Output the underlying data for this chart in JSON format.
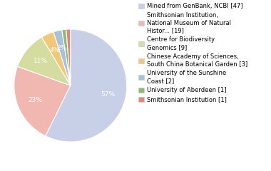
{
  "labels": [
    "Mined from GenBank, NCBI [47]",
    "Smithsonian Institution,\nNational Museum of Natural\nHistor... [19]",
    "Centre for Biodiversity\nGenomics [9]",
    "Chinese Academy of Sciences,\nSouth China Botanical Garden [3]",
    "University of the Sunshine\nCoast [2]",
    "University of Aberdeen [1]",
    "Smithsonian Institution [1]"
  ],
  "values": [
    47,
    19,
    9,
    3,
    2,
    1,
    1
  ],
  "colors": [
    "#c8d0e8",
    "#f0b8b0",
    "#d4dca0",
    "#f0c878",
    "#a8c0d8",
    "#90b878",
    "#e08878"
  ],
  "startangle": 90,
  "background_color": "#ffffff",
  "pct_distance": 0.68,
  "font_size_pct": 6.5,
  "font_size_legend": 6.0
}
